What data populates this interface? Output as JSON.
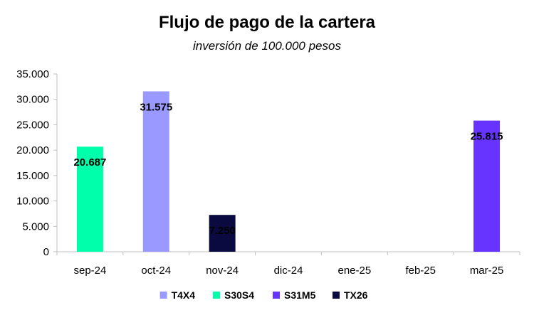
{
  "chart_data": {
    "type": "bar",
    "title": "Flujo de pago de la cartera",
    "subtitle": "inversión de 100.000 pesos",
    "xlabel": "",
    "ylabel": "",
    "categories": [
      "sep-24",
      "oct-24",
      "nov-24",
      "dic-24",
      "ene-25",
      "feb-25",
      "mar-25"
    ],
    "ylim": [
      0,
      35000
    ],
    "yticks": [
      0,
      5000,
      10000,
      15000,
      20000,
      25000,
      30000,
      35000
    ],
    "ytick_labels": [
      "0",
      "5.000",
      "10.000",
      "15.000",
      "20.000",
      "25.000",
      "30.000",
      "35.000"
    ],
    "grid": false,
    "legend_position": "bottom",
    "series": [
      {
        "name": "T4X4",
        "color": "#9999FF",
        "values": [
          0,
          31575,
          0,
          0,
          0,
          0,
          0
        ],
        "labels": [
          "",
          "31.575",
          "",
          "",
          "",
          "",
          ""
        ]
      },
      {
        "name": "S30S4",
        "color": "#00FFAA",
        "values": [
          20687,
          0,
          0,
          0,
          0,
          0,
          0
        ],
        "labels": [
          "20.687",
          "",
          "",
          "",
          "",
          "",
          ""
        ]
      },
      {
        "name": "S31M5",
        "color": "#6633FF",
        "values": [
          0,
          0,
          0,
          0,
          0,
          0,
          25815
        ],
        "labels": [
          "",
          "",
          "",
          "",
          "",
          "",
          "25.815"
        ]
      },
      {
        "name": "TX26",
        "color": "#0A0A40",
        "values": [
          0,
          0,
          7250,
          0,
          0,
          0,
          0
        ],
        "labels": [
          "",
          "",
          "7.250",
          "",
          "",
          "",
          ""
        ]
      }
    ]
  }
}
